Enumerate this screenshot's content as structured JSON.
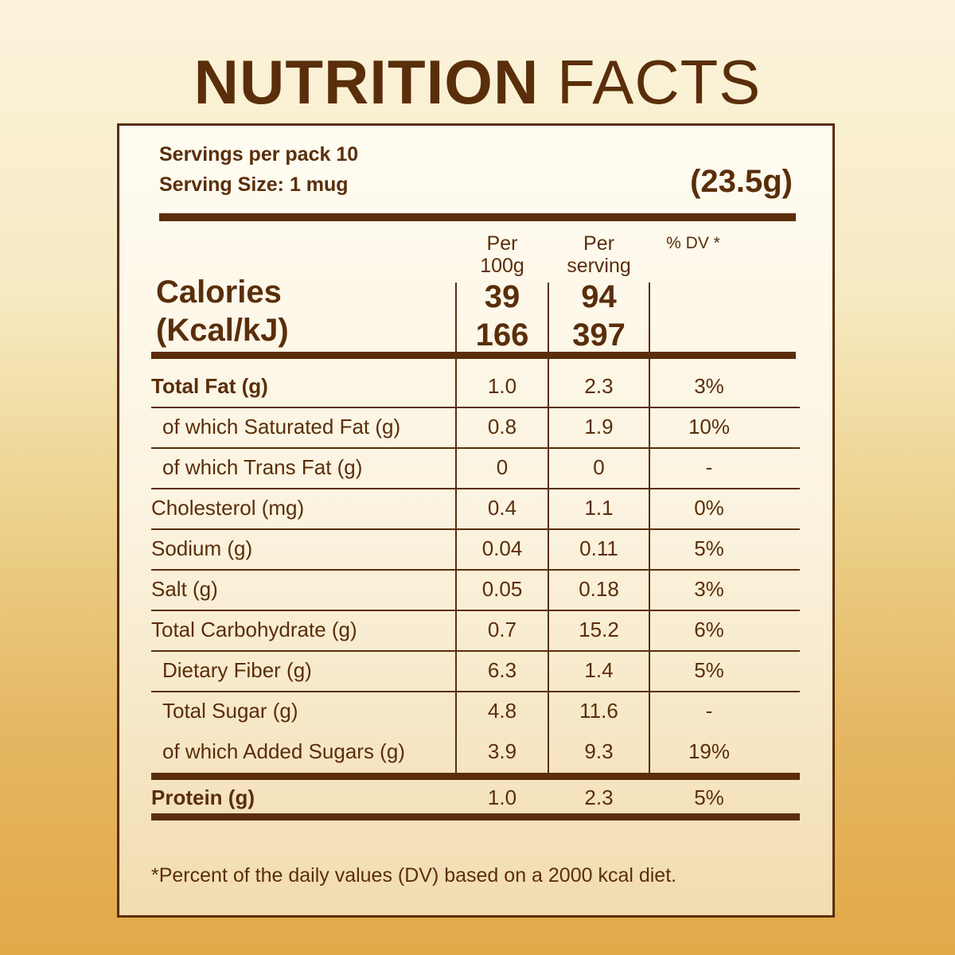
{
  "title": {
    "bold": "NUTRITION",
    "light": "FACTS"
  },
  "servings_per_pack": "Servings per pack 10",
  "serving_size": "Serving Size: 1 mug",
  "serving_weight": "(23.5g)",
  "columns": {
    "per100_line1": "Per",
    "per100_line2": "100g",
    "perserv_line1": "Per",
    "perserv_line2": "serving",
    "dv": "% DV *"
  },
  "calories": {
    "label_line1": "Calories",
    "label_line2": "(Kcal/kJ)",
    "per100_kcal": "39",
    "per100_kj": "166",
    "perserv_kcal": "94",
    "perserv_kj": "397"
  },
  "rows": [
    {
      "label": "Total Fat (g)",
      "per100": "1.0",
      "perserv": "2.3",
      "dv": "3%"
    },
    {
      "label": "of which Saturated Fat (g)",
      "per100": "0.8",
      "perserv": "1.9",
      "dv": "10%"
    },
    {
      "label": "of which Trans Fat (g)",
      "per100": "0",
      "perserv": "0",
      "dv": "-"
    },
    {
      "label": "Cholesterol (mg)",
      "per100": "0.4",
      "perserv": "1.1",
      "dv": "0%"
    },
    {
      "label": "Sodium (g)",
      "per100": "0.04",
      "perserv": "0.11",
      "dv": "5%"
    },
    {
      "label": "Salt (g)",
      "per100": "0.05",
      "perserv": "0.18",
      "dv": "3%"
    },
    {
      "label": "Total Carbohydrate (g)",
      "per100": "0.7",
      "perserv": "15.2",
      "dv": "6%"
    },
    {
      "label": "Dietary Fiber (g)",
      "per100": "6.3",
      "perserv": "1.4",
      "dv": "5%"
    },
    {
      "label": "Total Sugar (g)",
      "per100": "4.8",
      "perserv": "11.6",
      "dv": "-"
    },
    {
      "label": "of which Added Sugars (g)",
      "per100": "3.9",
      "perserv": "9.3",
      "dv": "19%"
    },
    {
      "label": "Protein (g)",
      "per100": "1.0",
      "perserv": "2.3",
      "dv": "5%"
    }
  ],
  "footnote": "*Percent of the daily values (DV) based on a 2000 kcal diet."
}
